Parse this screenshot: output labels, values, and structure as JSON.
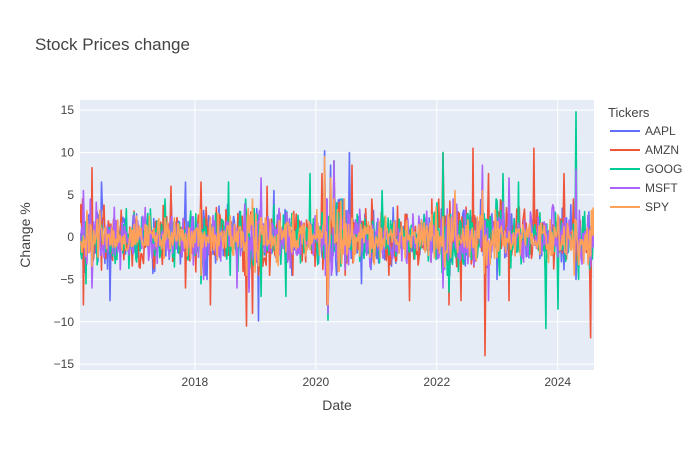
{
  "chart_data": {
    "type": "line",
    "title": "Stock Prices change",
    "xlabel": "Date",
    "ylabel": "Change %",
    "legend_title": "Tickers",
    "legend_position": "right",
    "grid": true,
    "x_range": [
      2016.1,
      2024.6
    ],
    "ylim": [
      -15.7,
      16.2
    ],
    "x_ticks": [
      2018,
      2020,
      2022,
      2024
    ],
    "x_tick_labels": [
      "2018",
      "2020",
      "2022",
      "2024"
    ],
    "y_ticks": [
      -15,
      -10,
      -5,
      0,
      5,
      10,
      15
    ],
    "y_tick_labels": [
      "−15",
      "−10",
      "−5",
      "0",
      "5",
      "10",
      "15"
    ],
    "series": [
      {
        "name": "AAPL",
        "color": "#636efa",
        "base_volatility": 1.5,
        "events": [
          {
            "x": 2016.45,
            "y": 6.5
          },
          {
            "x": 2016.6,
            "y": -7.5
          },
          {
            "x": 2017.6,
            "y": 5.0
          },
          {
            "x": 2017.85,
            "y": 6.5
          },
          {
            "x": 2018.2,
            "y": -5.0
          },
          {
            "x": 2018.9,
            "y": -6.0
          },
          {
            "x": 2019.05,
            "y": -9.9
          },
          {
            "x": 2019.3,
            "y": 5.5
          },
          {
            "x": 2020.15,
            "y": 10.2
          },
          {
            "x": 2020.2,
            "y": -8.5
          },
          {
            "x": 2020.25,
            "y": 8.5
          },
          {
            "x": 2020.55,
            "y": 10.0
          },
          {
            "x": 2020.75,
            "y": -5.5
          },
          {
            "x": 2022.1,
            "y": 6.0
          },
          {
            "x": 2022.75,
            "y": 7.5
          },
          {
            "x": 2023.0,
            "y": -5.0
          },
          {
            "x": 2024.3,
            "y": -5.0
          }
        ]
      },
      {
        "name": "AMZN",
        "color": "#ef553b",
        "base_volatility": 1.7,
        "events": [
          {
            "x": 2016.3,
            "y": 8.2
          },
          {
            "x": 2016.15,
            "y": -8.0
          },
          {
            "x": 2017.6,
            "y": 6.0
          },
          {
            "x": 2017.85,
            "y": -6.0
          },
          {
            "x": 2018.1,
            "y": 6.5
          },
          {
            "x": 2018.25,
            "y": -8.0
          },
          {
            "x": 2018.85,
            "y": -10.5
          },
          {
            "x": 2018.95,
            "y": -9.0
          },
          {
            "x": 2019.2,
            "y": 6.0
          },
          {
            "x": 2020.1,
            "y": 7.5
          },
          {
            "x": 2020.18,
            "y": -8.0
          },
          {
            "x": 2020.3,
            "y": 9.0
          },
          {
            "x": 2020.6,
            "y": 8.5
          },
          {
            "x": 2021.55,
            "y": -7.5
          },
          {
            "x": 2022.1,
            "y": 10.0
          },
          {
            "x": 2022.2,
            "y": -8.0
          },
          {
            "x": 2022.4,
            "y": -7.5
          },
          {
            "x": 2022.6,
            "y": 10.5
          },
          {
            "x": 2022.8,
            "y": -14.0
          },
          {
            "x": 2022.85,
            "y": 7.5
          },
          {
            "x": 2023.2,
            "y": -7.5
          },
          {
            "x": 2023.6,
            "y": 10.5
          },
          {
            "x": 2024.1,
            "y": 7.5
          },
          {
            "x": 2024.55,
            "y": -11.9
          }
        ]
      },
      {
        "name": "GOOG",
        "color": "#00cc96",
        "base_volatility": 1.5,
        "events": [
          {
            "x": 2016.2,
            "y": -5.5
          },
          {
            "x": 2017.5,
            "y": 4.5
          },
          {
            "x": 2018.1,
            "y": -5.5
          },
          {
            "x": 2018.55,
            "y": 6.5
          },
          {
            "x": 2019.1,
            "y": -7.0
          },
          {
            "x": 2019.5,
            "y": -7.0
          },
          {
            "x": 2019.9,
            "y": 7.5
          },
          {
            "x": 2020.2,
            "y": -9.8
          },
          {
            "x": 2020.3,
            "y": 9.0
          },
          {
            "x": 2021.1,
            "y": 5.5
          },
          {
            "x": 2022.1,
            "y": 10.0
          },
          {
            "x": 2022.2,
            "y": -6.5
          },
          {
            "x": 2023.1,
            "y": 7.5
          },
          {
            "x": 2023.35,
            "y": 6.5
          },
          {
            "x": 2023.8,
            "y": -10.8
          },
          {
            "x": 2024.0,
            "y": -8.5
          },
          {
            "x": 2024.3,
            "y": 14.8
          },
          {
            "x": 2024.35,
            "y": -5.0
          }
        ]
      },
      {
        "name": "MSFT",
        "color": "#ab63fa",
        "base_volatility": 1.5,
        "events": [
          {
            "x": 2016.15,
            "y": 5.5
          },
          {
            "x": 2016.3,
            "y": -6.0
          },
          {
            "x": 2018.15,
            "y": -5.0
          },
          {
            "x": 2018.7,
            "y": -6.0
          },
          {
            "x": 2018.9,
            "y": -6.5
          },
          {
            "x": 2019.1,
            "y": 7.0
          },
          {
            "x": 2020.15,
            "y": 8.5
          },
          {
            "x": 2020.2,
            "y": -9.0
          },
          {
            "x": 2020.3,
            "y": 9.0
          },
          {
            "x": 2022.1,
            "y": -6.0
          },
          {
            "x": 2022.75,
            "y": 8.5
          },
          {
            "x": 2022.85,
            "y": -7.5
          },
          {
            "x": 2023.2,
            "y": 7.0
          },
          {
            "x": 2024.3,
            "y": 8.0
          }
        ]
      },
      {
        "name": "SPY",
        "color": "#ffa15a",
        "base_volatility": 1.2,
        "events": [
          {
            "x": 2018.1,
            "y": -4.5
          },
          {
            "x": 2018.95,
            "y": 4.5
          },
          {
            "x": 2020.15,
            "y": 9.5
          },
          {
            "x": 2020.2,
            "y": -8.0
          },
          {
            "x": 2020.25,
            "y": 7.0
          },
          {
            "x": 2022.3,
            "y": 5.5
          },
          {
            "x": 2022.75,
            "y": 5.5
          }
        ]
      }
    ]
  }
}
